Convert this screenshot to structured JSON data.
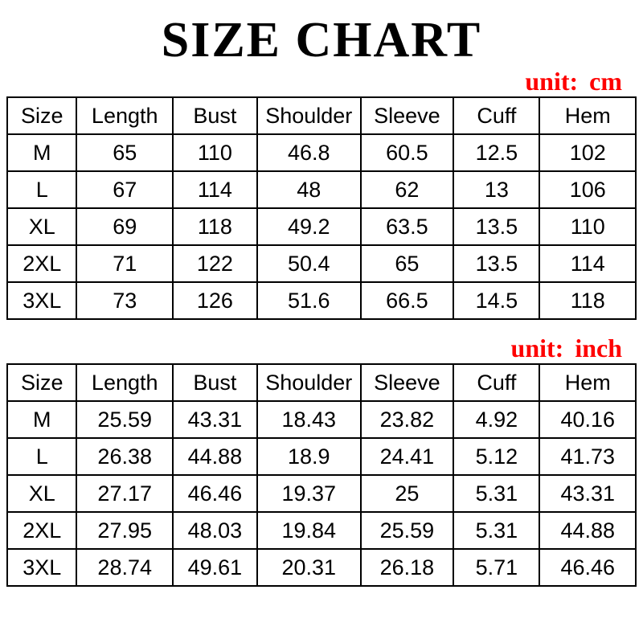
{
  "page": {
    "title": "SIZE CHART",
    "background_color": "#ffffff",
    "text_color": "#000000",
    "accent_red": "#fe0000"
  },
  "cm_table": {
    "unit_label": "unit: cm",
    "headers": [
      "Size",
      "Length",
      "Bust",
      "Shoulder",
      "Sleeve",
      "Cuff",
      "Hem"
    ],
    "rows": [
      [
        "M",
        "65",
        "110",
        "46.8",
        "60.5",
        "12.5",
        "102"
      ],
      [
        "L",
        "67",
        "114",
        "48",
        "62",
        "13",
        "106"
      ],
      [
        "XL",
        "69",
        "118",
        "49.2",
        "63.5",
        "13.5",
        "110"
      ],
      [
        "2XL",
        "71",
        "122",
        "50.4",
        "65",
        "13.5",
        "114"
      ],
      [
        "3XL",
        "73",
        "126",
        "51.6",
        "66.5",
        "14.5",
        "118"
      ]
    ]
  },
  "inch_table": {
    "unit_label": "unit: inch",
    "headers": [
      "Size",
      "Length",
      "Bust",
      "Shoulder",
      "Sleeve",
      "Cuff",
      "Hem"
    ],
    "rows": [
      [
        "M",
        "25.59",
        "43.31",
        "18.43",
        "23.82",
        "4.92",
        "40.16"
      ],
      [
        "L",
        "26.38",
        "44.88",
        "18.9",
        "24.41",
        "5.12",
        "41.73"
      ],
      [
        "XL",
        "27.17",
        "46.46",
        "19.37",
        "25",
        "5.31",
        "43.31"
      ],
      [
        "2XL",
        "27.95",
        "48.03",
        "19.84",
        "25.59",
        "5.31",
        "44.88"
      ],
      [
        "3XL",
        "28.74",
        "49.61",
        "20.31",
        "26.18",
        "5.71",
        "46.46"
      ]
    ]
  }
}
